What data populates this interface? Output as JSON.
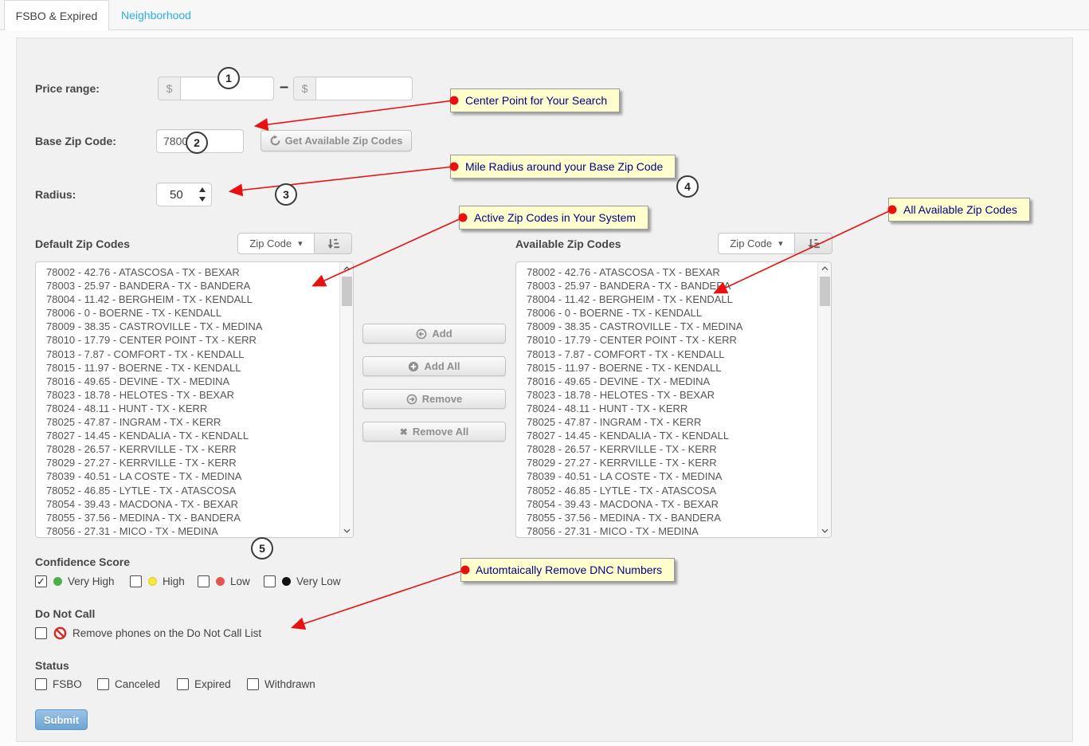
{
  "tabs": {
    "active": "FSBO & Expired",
    "inactive": "Neighborhood"
  },
  "form": {
    "price_range": {
      "label": "Price range:",
      "currency": "$",
      "min_value": "",
      "max_value": "",
      "separator": "–"
    },
    "base_zip": {
      "label": "Base Zip Code:",
      "value": "7800",
      "button_label": "Get Available Zip Codes"
    },
    "radius": {
      "label": "Radius:",
      "value": "50"
    }
  },
  "lists": {
    "default": {
      "title": "Default Zip Codes",
      "sort_by": "Zip Code"
    },
    "available": {
      "title": "Available Zip Codes",
      "sort_by": "Zip Code"
    },
    "items": [
      "78002 - 42.76 - ATASCOSA - TX - BEXAR",
      "78003 - 25.97 - BANDERA - TX - BANDERA",
      "78004 - 11.42 - BERGHEIM - TX - KENDALL",
      "78006 - 0 - BOERNE - TX - KENDALL",
      "78009 - 38.35 - CASTROVILLE - TX - MEDINA",
      "78010 - 17.79 - CENTER POINT - TX - KERR",
      "78013 - 7.87 - COMFORT - TX - KENDALL",
      "78015 - 11.97 - BOERNE - TX - KENDALL",
      "78016 - 49.65 - DEVINE - TX - MEDINA",
      "78023 - 18.78 - HELOTES - TX - BEXAR",
      "78024 - 48.11 - HUNT - TX - KERR",
      "78025 - 47.87 - INGRAM - TX - KERR",
      "78027 - 14.45 - KENDALIA - TX - KENDALL",
      "78028 - 26.57 - KERRVILLE - TX - KERR",
      "78029 - 27.27 - KERRVILLE - TX - KERR",
      "78039 - 40.51 - LA COSTE - TX - MEDINA",
      "78052 - 46.85 - LYTLE - TX - ATASCOSA",
      "78054 - 39.43 - MACDONA - TX - BEXAR",
      "78055 - 37.56 - MEDINA - TX - BANDERA",
      "78056 - 27.31 - MICO - TX - MEDINA"
    ]
  },
  "transfer": {
    "add": "Add",
    "add_all": "Add All",
    "remove": "Remove",
    "remove_all": "Remove All"
  },
  "confidence": {
    "label": "Confidence Score",
    "options": [
      {
        "label": "Very High",
        "checked": true,
        "color": "#4cae4c"
      },
      {
        "label": "High",
        "checked": false,
        "color": "#f5e93d"
      },
      {
        "label": "Low",
        "checked": false,
        "color": "#e2574c"
      },
      {
        "label": "Very Low",
        "checked": false,
        "color": "#111111"
      }
    ]
  },
  "dnc": {
    "label": "Do Not Call",
    "option": "Remove phones on the Do Not Call List",
    "checked": false
  },
  "status": {
    "label": "Status",
    "options": [
      "FSBO",
      "Canceled",
      "Expired",
      "Withdrawn"
    ]
  },
  "submit_label": "Submit",
  "callouts": [
    {
      "text": "Center Point for Your Search"
    },
    {
      "text": "Mile Radius around your Base Zip Code"
    },
    {
      "text": "Active Zip Codes in Your System"
    },
    {
      "text": "All Available Zip Codes"
    },
    {
      "text": "Automtaically Remove DNC Numbers"
    }
  ],
  "steps": [
    "1",
    "2",
    "3",
    "4",
    "5"
  ],
  "colors": {
    "tab_link": "#2daee3",
    "callout_bg": "#ffffcd",
    "callout_text": "#00008b",
    "arrow_red": "#e8110f",
    "submit_blue": "#6ea5d3",
    "dnc_icon_red": "#c9302c"
  }
}
